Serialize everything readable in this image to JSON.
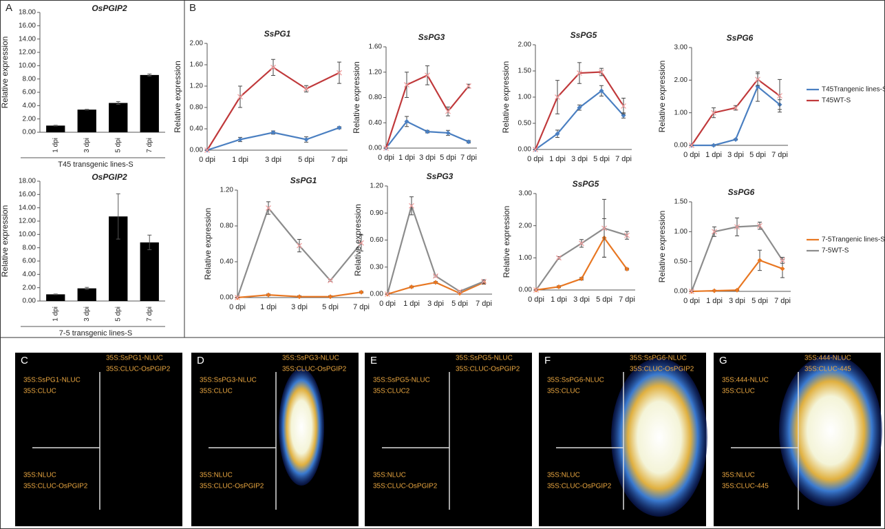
{
  "chart_data": [
    {
      "type": "bar",
      "panel": "A",
      "title": "OsPGIP2",
      "y_label": "Relative expression",
      "x_label": "T45 transgenic lines-S",
      "categories": [
        "1 dpi",
        "3 dpi",
        "5 dpi",
        "7 dpi"
      ],
      "values": [
        1.0,
        3.4,
        4.4,
        8.6
      ],
      "errors": [
        0.05,
        0.05,
        0.2,
        0.15
      ],
      "color": "#000000",
      "ylim": [
        0,
        18
      ],
      "yticks": [
        {
          "value": 0,
          "label": "0.00"
        },
        {
          "value": 2,
          "label": "2.00"
        },
        {
          "value": 4,
          "label": "4.00"
        },
        {
          "value": 6,
          "label": "6.00"
        },
        {
          "value": 8,
          "label": "8.00"
        },
        {
          "value": 10,
          "label": "10.00"
        },
        {
          "value": 12,
          "label": "12.00"
        },
        {
          "value": 14,
          "label": "14.00"
        },
        {
          "value": 16,
          "label": "16.00"
        },
        {
          "value": 18,
          "label": "18.00"
        }
      ]
    },
    {
      "type": "bar",
      "title": "OsPGIP2",
      "y_label": "Relative expression",
      "x_label": "7-5 transgenic lines-S",
      "categories": [
        "1 dpi",
        "3 dpi",
        "5 dpi",
        "7 dpi"
      ],
      "values": [
        1.0,
        1.9,
        12.7,
        8.8
      ],
      "errors": [
        0.05,
        0.15,
        3.4,
        1.1
      ],
      "color": "#000000",
      "ylim": [
        0,
        18
      ],
      "yticks": [
        {
          "value": 0,
          "label": "0.00"
        },
        {
          "value": 2,
          "label": "2.00"
        },
        {
          "value": 4,
          "label": "4.00"
        },
        {
          "value": 6,
          "label": "6.00"
        },
        {
          "value": 8,
          "label": "8.00"
        },
        {
          "value": 10,
          "label": "10.00"
        },
        {
          "value": 12,
          "label": "12.00"
        },
        {
          "value": 14,
          "label": "14.00"
        },
        {
          "value": 16,
          "label": "16.00"
        },
        {
          "value": 18,
          "label": "18.00"
        }
      ]
    },
    {
      "type": "line",
      "panel": "B",
      "title": "SsPG1",
      "y_label": "Relative expression",
      "categories": [
        "0 dpi",
        "1 dpi",
        "3 dpi",
        "5 dpi",
        "7 dpi"
      ],
      "series": [
        {
          "color": "#4a7fc1",
          "values": [
            0,
            0.2,
            0.33,
            0.2,
            0.42
          ],
          "errors": [
            0,
            0.04,
            0.03,
            0.05,
            0.02
          ]
        },
        {
          "color": "#c0393b",
          "values": [
            0,
            1.0,
            1.55,
            1.15,
            1.45
          ],
          "errors": [
            0,
            0.2,
            0.15,
            0.06,
            0.2
          ]
        }
      ],
      "ylim": [
        0,
        2
      ],
      "yticks": [
        {
          "value": 0,
          "label": "0.00"
        },
        {
          "value": 0.4,
          "label": "0.40"
        },
        {
          "value": 0.8,
          "label": "0.80"
        },
        {
          "value": 1.2,
          "label": "1.20"
        },
        {
          "value": 1.6,
          "label": "1.60"
        },
        {
          "value": 2,
          "label": "2.00"
        }
      ]
    },
    {
      "type": "line",
      "title": "SsPG3",
      "y_label": "Relative expression",
      "categories": [
        "0 dpi",
        "1 dpi",
        "3 dpi",
        "5 dpi",
        "7 dpi"
      ],
      "series": [
        {
          "color": "#4a7fc1",
          "values": [
            0,
            0.42,
            0.26,
            0.24,
            0.1
          ],
          "errors": [
            0,
            0.08,
            0.02,
            0.04,
            0.02
          ]
        },
        {
          "color": "#c0393b",
          "values": [
            0,
            1.0,
            1.15,
            0.58,
            0.98
          ],
          "errors": [
            0,
            0.2,
            0.15,
            0.07,
            0.03
          ]
        }
      ],
      "ylim": [
        0,
        1.6
      ],
      "yticks": [
        {
          "value": 0,
          "label": "0.00"
        },
        {
          "value": 0.4,
          "label": "0.40"
        },
        {
          "value": 0.8,
          "label": "0.80"
        },
        {
          "value": 1.2,
          "label": "1.20"
        },
        {
          "value": 1.6,
          "label": "1.60"
        }
      ]
    },
    {
      "type": "line",
      "title": "SsPG5",
      "y_label": "Relative expression",
      "categories": [
        "0 dpi",
        "1 dpi",
        "3 dpi",
        "5 dpi",
        "7 dpi"
      ],
      "series": [
        {
          "color": "#4a7fc1",
          "values": [
            0,
            0.3,
            0.8,
            1.12,
            0.65
          ],
          "errors": [
            0,
            0.07,
            0.05,
            0.1,
            0.05
          ]
        },
        {
          "color": "#c0393b",
          "values": [
            0,
            1.0,
            1.46,
            1.48,
            0.83
          ],
          "errors": [
            0,
            0.32,
            0.2,
            0.07,
            0.15
          ]
        }
      ],
      "ylim": [
        0,
        2
      ],
      "yticks": [
        {
          "value": 0,
          "label": "0.00"
        },
        {
          "value": 0.5,
          "label": "0.50"
        },
        {
          "value": 1,
          "label": "1.00"
        },
        {
          "value": 1.5,
          "label": "1.50"
        },
        {
          "value": 2,
          "label": "2.00"
        }
      ]
    },
    {
      "type": "line",
      "title": "SsPG6",
      "y_label": "Relative expression",
      "categories": [
        "0 dpi",
        "1 dpi",
        "3 dpi",
        "5 dpi",
        "7 dpi"
      ],
      "legend": "right",
      "series": [
        {
          "name": "T45Trangenic lines-S",
          "color": "#4a7fc1",
          "values": [
            0,
            0,
            0.18,
            1.8,
            1.25
          ],
          "errors": [
            0,
            0.02,
            0.02,
            0.45,
            0.15
          ]
        },
        {
          "name": "T45WT-S",
          "color": "#c0393b",
          "values": [
            0,
            1.0,
            1.15,
            2.02,
            1.52
          ],
          "errors": [
            0,
            0.15,
            0.07,
            0.18,
            0.5
          ]
        }
      ],
      "ylim": [
        0,
        3
      ],
      "yticks": [
        {
          "value": 0,
          "label": "0.00"
        },
        {
          "value": 1,
          "label": "1.00"
        },
        {
          "value": 2,
          "label": "2.00"
        },
        {
          "value": 3,
          "label": "3.00"
        }
      ]
    },
    {
      "type": "line",
      "title": "SsPG1",
      "y_label": "Relative expression",
      "categories": [
        "0 dpi",
        "1 dpi",
        "3 dpi",
        "5 dpi",
        "7 dpi"
      ],
      "series": [
        {
          "color": "#e87722",
          "values": [
            0,
            0.03,
            0.01,
            0.01,
            0.06
          ],
          "errors": [
            0,
            0.01,
            0.01,
            0.01,
            0.01
          ]
        },
        {
          "color": "#8c8c8c",
          "values": [
            0,
            1.0,
            0.58,
            0.19,
            0.61
          ],
          "errors": [
            0,
            0.07,
            0.07,
            0.01,
            0.09
          ]
        }
      ],
      "ylim": [
        0,
        1.2
      ],
      "yticks": [
        {
          "value": 0,
          "label": "0.00"
        },
        {
          "value": 0.4,
          "label": "0.40"
        },
        {
          "value": 0.8,
          "label": "0.80"
        },
        {
          "value": 1.2,
          "label": "1.20"
        }
      ]
    },
    {
      "type": "line",
      "title": "SsPG3",
      "y_label": "Relative expression",
      "categories": [
        "0 dpi",
        "1 dpi",
        "3 dpi",
        "5 dpi",
        "7 dpi"
      ],
      "series": [
        {
          "color": "#e87722",
          "values": [
            0,
            0.08,
            0.13,
            0.01,
            0.13
          ],
          "errors": [
            0,
            0.01,
            0.01,
            0.01,
            0.02
          ]
        },
        {
          "color": "#8c8c8c",
          "values": [
            0,
            0.98,
            0.2,
            0.03,
            0.14
          ],
          "errors": [
            0,
            0.1,
            0.01,
            0.01,
            0.02
          ]
        }
      ],
      "ylim": [
        0,
        1.2
      ],
      "yticks": [
        {
          "value": 0,
          "label": "0.00"
        },
        {
          "value": 0.3,
          "label": "0.30"
        },
        {
          "value": 0.6,
          "label": "0.60"
        },
        {
          "value": 0.9,
          "label": "0.90"
        },
        {
          "value": 1.2,
          "label": "1.20"
        }
      ]
    },
    {
      "type": "line",
      "title": "SsPG5",
      "y_label": "Relative expression",
      "categories": [
        "0 dpi",
        "1 dpi",
        "3 dpi",
        "5 dpi",
        "7 dpi"
      ],
      "series": [
        {
          "color": "#e87722",
          "values": [
            0,
            0.1,
            0.35,
            1.62,
            0.65
          ],
          "errors": [
            0,
            0.03,
            0.04,
            0.6,
            0.03
          ]
        },
        {
          "color": "#8c8c8c",
          "values": [
            0,
            1.0,
            1.45,
            1.92,
            1.7
          ],
          "errors": [
            0,
            0.04,
            0.12,
            0.9,
            0.12
          ]
        }
      ],
      "ylim": [
        0,
        3
      ],
      "yticks": [
        {
          "value": 0,
          "label": "0.00"
        },
        {
          "value": 1,
          "label": "1.00"
        },
        {
          "value": 2,
          "label": "2.00"
        },
        {
          "value": 3,
          "label": "3.00"
        }
      ]
    },
    {
      "type": "line",
      "title": "SsPG6",
      "y_label": "Relative expression",
      "categories": [
        "0 dpi",
        "1 dpi",
        "3 dpi",
        "5 dpi",
        "7 dpi"
      ],
      "legend": "right",
      "series": [
        {
          "name": "7-5Trangenic lines-S",
          "color": "#e87722",
          "values": [
            0,
            0.01,
            0.02,
            0.52,
            0.38
          ],
          "errors": [
            0,
            0.01,
            0.01,
            0.17,
            0.15
          ]
        },
        {
          "name": "7-5WT-S",
          "color": "#8c8c8c",
          "values": [
            0,
            1.0,
            1.08,
            1.1,
            0.52
          ],
          "errors": [
            0,
            0.08,
            0.15,
            0.06,
            0.05
          ]
        }
      ],
      "ylim": [
        0,
        1.5
      ],
      "yticks": [
        {
          "value": 0,
          "label": "0.00"
        },
        {
          "value": 0.5,
          "label": "0.50"
        },
        {
          "value": 1,
          "label": "1.00"
        },
        {
          "value": 1.5,
          "label": "1.50"
        }
      ]
    }
  ],
  "images": [
    {
      "letter": "C",
      "top_right": [
        "35S:SsPG1-NLUC",
        "35S:CLUC-OsPGIP2"
      ],
      "top_left": [
        "35S:SsPG1-NLUC",
        "35S:CLUC"
      ],
      "bottom_left": [
        "35S:NLUC",
        "35S:CLUC-OsPGIP2"
      ]
    },
    {
      "letter": "D",
      "top_right": [
        "35S:SsPG3-NLUC",
        "35S:CLUC-OsPGIP2"
      ],
      "top_left": [
        "35S:SsPG3-NLUC",
        "35S:CLUC"
      ],
      "bottom_left": [
        "35S:NLUC",
        "35S:CLUC-OsPGIP2"
      ]
    },
    {
      "letter": "E",
      "top_right": [
        "35S:SsPG5-NLUC",
        "35S:CLUC-OsPGIP2"
      ],
      "top_left": [
        "35S:SsPG5-NLUC",
        "35S:CLUC2"
      ],
      "bottom_left": [
        "35S:NLUC",
        "35S:CLUC-OsPGIP2"
      ]
    },
    {
      "letter": "F",
      "top_right": [
        "35S:SsPG6-NLUC",
        "35S:CLUC-OsPGIP2"
      ],
      "top_left": [
        "35S:SsPG6-NLUC",
        "35S:CLUC"
      ],
      "bottom_left": [
        "35S:NLUC",
        "35S:CLUC-OsPGIP2"
      ]
    },
    {
      "letter": "G",
      "top_right": [
        "35S:444-NLUC",
        "35S:CLUC-445"
      ],
      "top_left": [
        "35S:444-NLUC",
        "35S:CLUC"
      ],
      "bottom_left": [
        "35S:NLUC",
        "35S:CLUC-445"
      ]
    }
  ]
}
